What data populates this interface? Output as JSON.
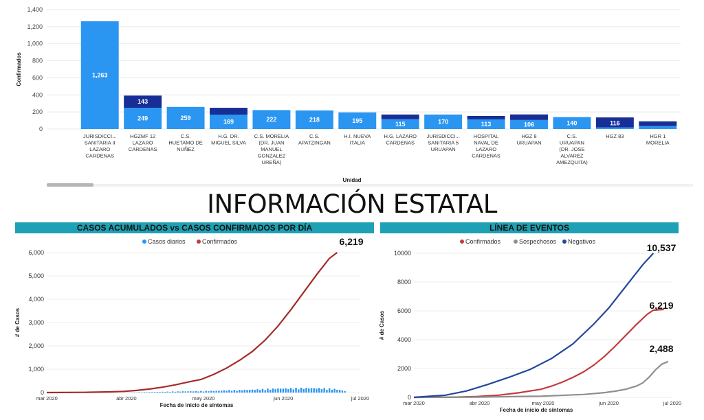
{
  "top": {
    "title_partial": "",
    "xlabel": "Unidad",
    "ylabel": "Confirmados"
  },
  "section_title": "INFORMACIÓN ESTATAL",
  "left_panel": {
    "header": "CASOS ACUMULADOS vs CASOS CONFIRMADOS POR DÍA"
  },
  "right_panel": {
    "header": "LÍNEA DE EVENTOS"
  },
  "colors": {
    "light_blue": "#2b95f2",
    "dark_blue": "#182e97",
    "red": "#c23b3b",
    "dark_red": "#a62a2a",
    "blue_line": "#21479b",
    "gray_line": "#8e8e8e",
    "header_teal": "#1fa1b5"
  },
  "chart_data": [
    {
      "type": "bar",
      "xlabel": "Unidad",
      "ylabel": "Confirmados",
      "ylim": [
        0,
        1400
      ],
      "yticks": [
        "0",
        "200",
        "400",
        "600",
        "800",
        "1,000",
        "1,200",
        "1,400"
      ],
      "ytick_values": [
        0,
        200,
        400,
        600,
        800,
        1000,
        1200,
        1400
      ],
      "categories": [
        [
          "JURISDICCI...",
          "SANITARIA II",
          "LAZARO",
          "CARDENAS"
        ],
        [
          "HGZMF 12",
          "LAZARO",
          "CARDENAS"
        ],
        [
          "C.S.",
          "HUETAMO DE",
          "NUÑEZ"
        ],
        [
          "H.G. DR.",
          "MIGUEL SILVA"
        ],
        [
          "C.S. MORELIA",
          "(DR. JUAN",
          "MANUEL",
          "GONZALEZ",
          "UREÑA)"
        ],
        [
          "C.S.",
          "APATZINGAN"
        ],
        [
          "H.I. NUEVA",
          "ITALIA"
        ],
        [
          "H.G. LAZARO",
          "CARDENAS"
        ],
        [
          "JURISDICCI...",
          "SANITARIA 5",
          "URUAPAN"
        ],
        [
          "HOSPITAL",
          "NAVAL DE",
          "LAZARO",
          "CARDENAS"
        ],
        [
          "HGZ 8",
          "URUAPAN"
        ],
        [
          "C.S.",
          "URUAPAN",
          "(DR. JOSE",
          "ALVAREZ",
          "AMEZQUITA)"
        ],
        [
          "HGZ 83"
        ],
        [
          "HGR 1",
          "MORELIA"
        ]
      ],
      "series": [
        {
          "values": [
            1263,
            249,
            259,
            169,
            222,
            218,
            195,
            115,
            170,
            113,
            106,
            140,
            20,
            35
          ]
        },
        {
          "values": [
            0,
            143,
            0,
            80,
            0,
            0,
            0,
            55,
            0,
            40,
            65,
            0,
            116,
            55
          ]
        }
      ],
      "data_labels": [
        "1,263",
        "249",
        "259",
        "169",
        "222",
        "218",
        "195",
        "115",
        "170",
        "113",
        "106",
        "140",
        "116",
        ""
      ],
      "dark_labels": [
        "",
        "143",
        "",
        "",
        "",
        "",
        "",
        "",
        "",
        "",
        "",
        "",
        "",
        ""
      ]
    },
    {
      "type": "line",
      "title": "CASOS ACUMULADOS vs CASOS CONFIRMADOS POR DÍA",
      "xlabel": "Fecha de inicio de síntomas",
      "ylabel": "# de Casos",
      "ylim": [
        0,
        6000
      ],
      "yticks": [
        "0",
        "1,000",
        "2,000",
        "3,000",
        "4,000",
        "5,000",
        "6,000"
      ],
      "ytick_values": [
        0,
        1000,
        2000,
        3000,
        4000,
        5000,
        6000
      ],
      "xticks": [
        "mar 2020",
        "abr 2020",
        "may 2020",
        "jun 2020",
        "jul 2020"
      ],
      "xtick_days": [
        0,
        31,
        61,
        92,
        122
      ],
      "legend": [
        "Casos diarios",
        "Confirmados"
      ],
      "legend_position": "top-center",
      "end_label": "6,219",
      "confirmados": {
        "x_days": [
          0,
          15,
          25,
          30,
          35,
          40,
          45,
          50,
          55,
          60,
          65,
          70,
          75,
          80,
          85,
          90,
          95,
          100,
          105,
          110,
          113
        ],
        "y": [
          0,
          10,
          30,
          50,
          90,
          150,
          230,
          330,
          450,
          560,
          780,
          1050,
          1380,
          1760,
          2250,
          2850,
          3550,
          4300,
          5050,
          5750,
          6000
        ]
      },
      "casos_diarios": {
        "x_days": [
          30,
          40,
          50,
          60,
          65,
          70,
          75,
          80,
          85,
          90,
          95,
          100,
          105,
          110,
          113,
          116
        ],
        "y": [
          5,
          20,
          40,
          55,
          65,
          85,
          95,
          110,
          130,
          150,
          160,
          170,
          165,
          150,
          120,
          60
        ]
      }
    },
    {
      "type": "line",
      "title": "LÍNEA DE EVENTOS",
      "xlabel": "Fecha de inicio de síntomas",
      "ylabel": "# de Casos",
      "ylim": [
        0,
        10000
      ],
      "yticks": [
        "0",
        "2000",
        "4000",
        "6000",
        "8000",
        "10000"
      ],
      "ytick_values": [
        0,
        2000,
        4000,
        6000,
        8000,
        10000
      ],
      "xticks": [
        "mar 2020",
        "abr 2020",
        "may 2020",
        "jun 2020",
        "jul 2020"
      ],
      "xtick_days": [
        0,
        31,
        61,
        92,
        122
      ],
      "legend": [
        "Confirmados",
        "Sospechosos",
        "Negativos"
      ],
      "legend_position": "top-center",
      "end_labels": [
        "10,537",
        "6,219",
        "2,488"
      ],
      "series": [
        {
          "name": "Confirmados",
          "x_days": [
            0,
            20,
            30,
            40,
            50,
            60,
            65,
            70,
            75,
            80,
            85,
            90,
            95,
            100,
            105,
            110,
            113,
            118
          ],
          "y": [
            0,
            20,
            60,
            150,
            330,
            560,
            780,
            1050,
            1380,
            1760,
            2250,
            2850,
            3550,
            4300,
            5050,
            5750,
            6050,
            6100
          ]
        },
        {
          "name": "Sospechosos",
          "x_days": [
            0,
            30,
            60,
            80,
            90,
            95,
            100,
            105,
            108,
            111,
            114,
            117,
            120
          ],
          "y": [
            0,
            20,
            80,
            200,
            330,
            430,
            560,
            780,
            1000,
            1400,
            1900,
            2300,
            2488
          ]
        },
        {
          "name": "Negativos",
          "x_days": [
            0,
            15,
            25,
            35,
            45,
            55,
            65,
            75,
            85,
            92,
            100,
            108,
            113
          ],
          "y": [
            0,
            150,
            450,
            900,
            1400,
            1950,
            2700,
            3700,
            5100,
            6200,
            7700,
            9200,
            10000
          ]
        }
      ]
    }
  ]
}
